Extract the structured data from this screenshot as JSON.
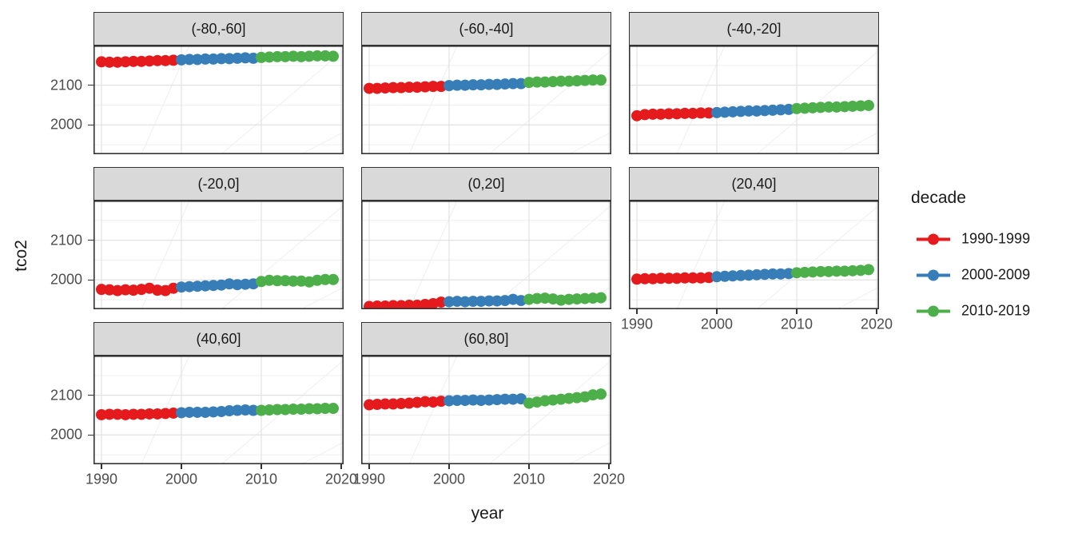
{
  "figure": {
    "xlabel": "year",
    "ylabel": "tco2"
  },
  "legend": {
    "title": "decade",
    "entries": [
      {
        "label": "1990-1999",
        "color": "#E41A1C"
      },
      {
        "label": "2000-2009",
        "color": "#377EB8"
      },
      {
        "label": "2010-2019",
        "color": "#4DAF4A"
      }
    ]
  },
  "style": {
    "strip_fill": "#D9D9D9",
    "panel_border": "#333333",
    "grid_major": "#E2E2E2",
    "grid_minor": "#EFEFEF",
    "tick_color": "#333333",
    "tick_label_color": "#4D4D4D"
  },
  "chart_data": {
    "type": "scatter",
    "title": "",
    "xlabel": "year",
    "ylabel": "tco2",
    "facet_variable": "latitude band",
    "ncol": 3,
    "x_ticks": [
      1990,
      2000,
      2010,
      2020
    ],
    "y_ticks": [
      2100,
      2000
    ],
    "x_range": [
      1988.5,
      2020.5
    ],
    "y_range": [
      1926,
      2200
    ],
    "grid": true,
    "legend_position": "right",
    "color_by": "decade",
    "decades": [
      {
        "name": "1990-1999",
        "color": "#E41A1C",
        "years": [
          1990,
          1999
        ]
      },
      {
        "name": "2000-2009",
        "color": "#377EB8",
        "years": [
          2000,
          2009
        ]
      },
      {
        "name": "2010-2019",
        "color": "#4DAF4A",
        "years": [
          2010,
          2019
        ]
      }
    ],
    "years": [
      1990,
      1991,
      1992,
      1993,
      1994,
      1995,
      1996,
      1997,
      1998,
      1999,
      2000,
      2001,
      2002,
      2003,
      2004,
      2005,
      2006,
      2007,
      2008,
      2009,
      2010,
      2011,
      2012,
      2013,
      2014,
      2015,
      2016,
      2017,
      2018,
      2019
    ],
    "facets": [
      {
        "label": "(-80,-60]",
        "values": [
          2159,
          2158,
          2158,
          2159,
          2160,
          2160,
          2161,
          2162,
          2162,
          2163,
          2164,
          2165,
          2165,
          2166,
          2166,
          2167,
          2167,
          2168,
          2169,
          2168,
          2170,
          2171,
          2172,
          2172,
          2173,
          2172,
          2173,
          2174,
          2174,
          2173
        ]
      },
      {
        "label": "(-60,-40]",
        "values": [
          2092,
          2092,
          2093,
          2094,
          2094,
          2095,
          2095,
          2096,
          2097,
          2097,
          2099,
          2100,
          2100,
          2101,
          2101,
          2102,
          2102,
          2103,
          2104,
          2104,
          2107,
          2108,
          2108,
          2109,
          2110,
          2110,
          2111,
          2112,
          2113,
          2113
        ]
      },
      {
        "label": "(-40,-20]",
        "values": [
          2023,
          2026,
          2027,
          2027,
          2028,
          2028,
          2029,
          2029,
          2030,
          2030,
          2031,
          2032,
          2033,
          2034,
          2035,
          2035,
          2036,
          2037,
          2038,
          2039,
          2041,
          2042,
          2043,
          2044,
          2045,
          2045,
          2046,
          2047,
          2048,
          2049
        ]
      },
      {
        "label": "(-20,0]",
        "values": [
          1976,
          1975,
          1973,
          1975,
          1974,
          1976,
          1979,
          1974,
          1973,
          1979,
          1982,
          1983,
          1984,
          1985,
          1986,
          1987,
          1990,
          1988,
          1989,
          1990,
          1996,
          1999,
          1998,
          1998,
          1997,
          1997,
          1995,
          1999,
          2001,
          2001
        ]
      },
      {
        "label": "(0,20]",
        "values": [
          1933,
          1934,
          1934,
          1935,
          1935,
          1936,
          1936,
          1938,
          1940,
          1944,
          1945,
          1946,
          1945,
          1946,
          1946,
          1947,
          1947,
          1948,
          1951,
          1948,
          1951,
          1953,
          1954,
          1952,
          1949,
          1951,
          1952,
          1953,
          1954,
          1955
        ]
      },
      {
        "label": "(20,40]",
        "values": [
          2002,
          2003,
          2003,
          2004,
          2004,
          2004,
          2005,
          2005,
          2005,
          2006,
          2008,
          2009,
          2010,
          2011,
          2012,
          2013,
          2014,
          2015,
          2015,
          2016,
          2018,
          2019,
          2020,
          2021,
          2021,
          2022,
          2022,
          2023,
          2024,
          2026
        ]
      },
      {
        "label": "(40,60]",
        "values": [
          2051,
          2052,
          2052,
          2051,
          2052,
          2052,
          2053,
          2053,
          2054,
          2055,
          2056,
          2057,
          2057,
          2057,
          2058,
          2059,
          2061,
          2062,
          2063,
          2062,
          2062,
          2063,
          2064,
          2064,
          2065,
          2065,
          2066,
          2066,
          2067,
          2067
        ]
      },
      {
        "label": "(60,80]",
        "values": [
          2076,
          2077,
          2078,
          2078,
          2079,
          2080,
          2082,
          2084,
          2083,
          2085,
          2086,
          2087,
          2087,
          2088,
          2087,
          2088,
          2089,
          2090,
          2090,
          2091,
          2080,
          2083,
          2086,
          2088,
          2090,
          2092,
          2094,
          2096,
          2101,
          2103
        ]
      }
    ]
  }
}
